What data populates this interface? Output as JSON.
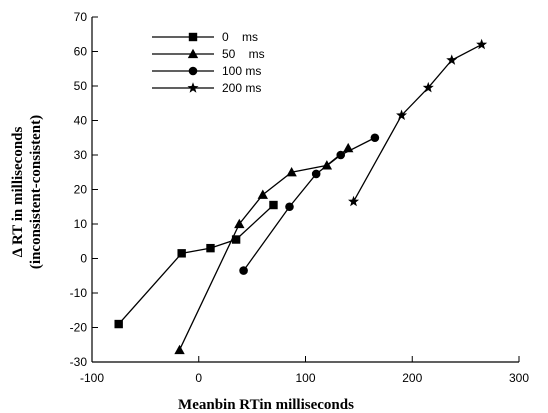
{
  "chart_data": {
    "type": "line",
    "title": "",
    "xlabel": "Meanbin RTin milliseconds",
    "ylabel_line1": "Δ RT in milliseconds",
    "ylabel_line2": "(inconsistent-consistent)",
    "xlim": [
      -100,
      300
    ],
    "ylim": [
      -30,
      70
    ],
    "xticks": [
      -100,
      0,
      100,
      200,
      300
    ],
    "yticks": [
      -30,
      -20,
      -10,
      0,
      10,
      20,
      30,
      40,
      50,
      60,
      70
    ],
    "grid": false,
    "legend_position": "top-left",
    "series": [
      {
        "name": "0    ms",
        "marker": "square",
        "x": [
          -75,
          -16,
          11,
          35,
          70
        ],
        "y": [
          -19,
          1.5,
          3,
          5.5,
          15.5
        ]
      },
      {
        "name": "50    ms",
        "marker": "triangle",
        "x": [
          -18,
          38,
          60,
          87,
          120,
          140
        ],
        "y": [
          -26.5,
          10,
          18.5,
          25,
          27,
          32
        ]
      },
      {
        "name": "100 ms",
        "marker": "circle",
        "x": [
          42,
          85,
          110,
          133,
          165
        ],
        "y": [
          -3.5,
          15,
          24.5,
          30,
          35
        ]
      },
      {
        "name": "200 ms",
        "marker": "star",
        "x": [
          145,
          190,
          215,
          237,
          265
        ],
        "y": [
          16.5,
          41.5,
          49.5,
          57.5,
          62
        ]
      }
    ]
  }
}
